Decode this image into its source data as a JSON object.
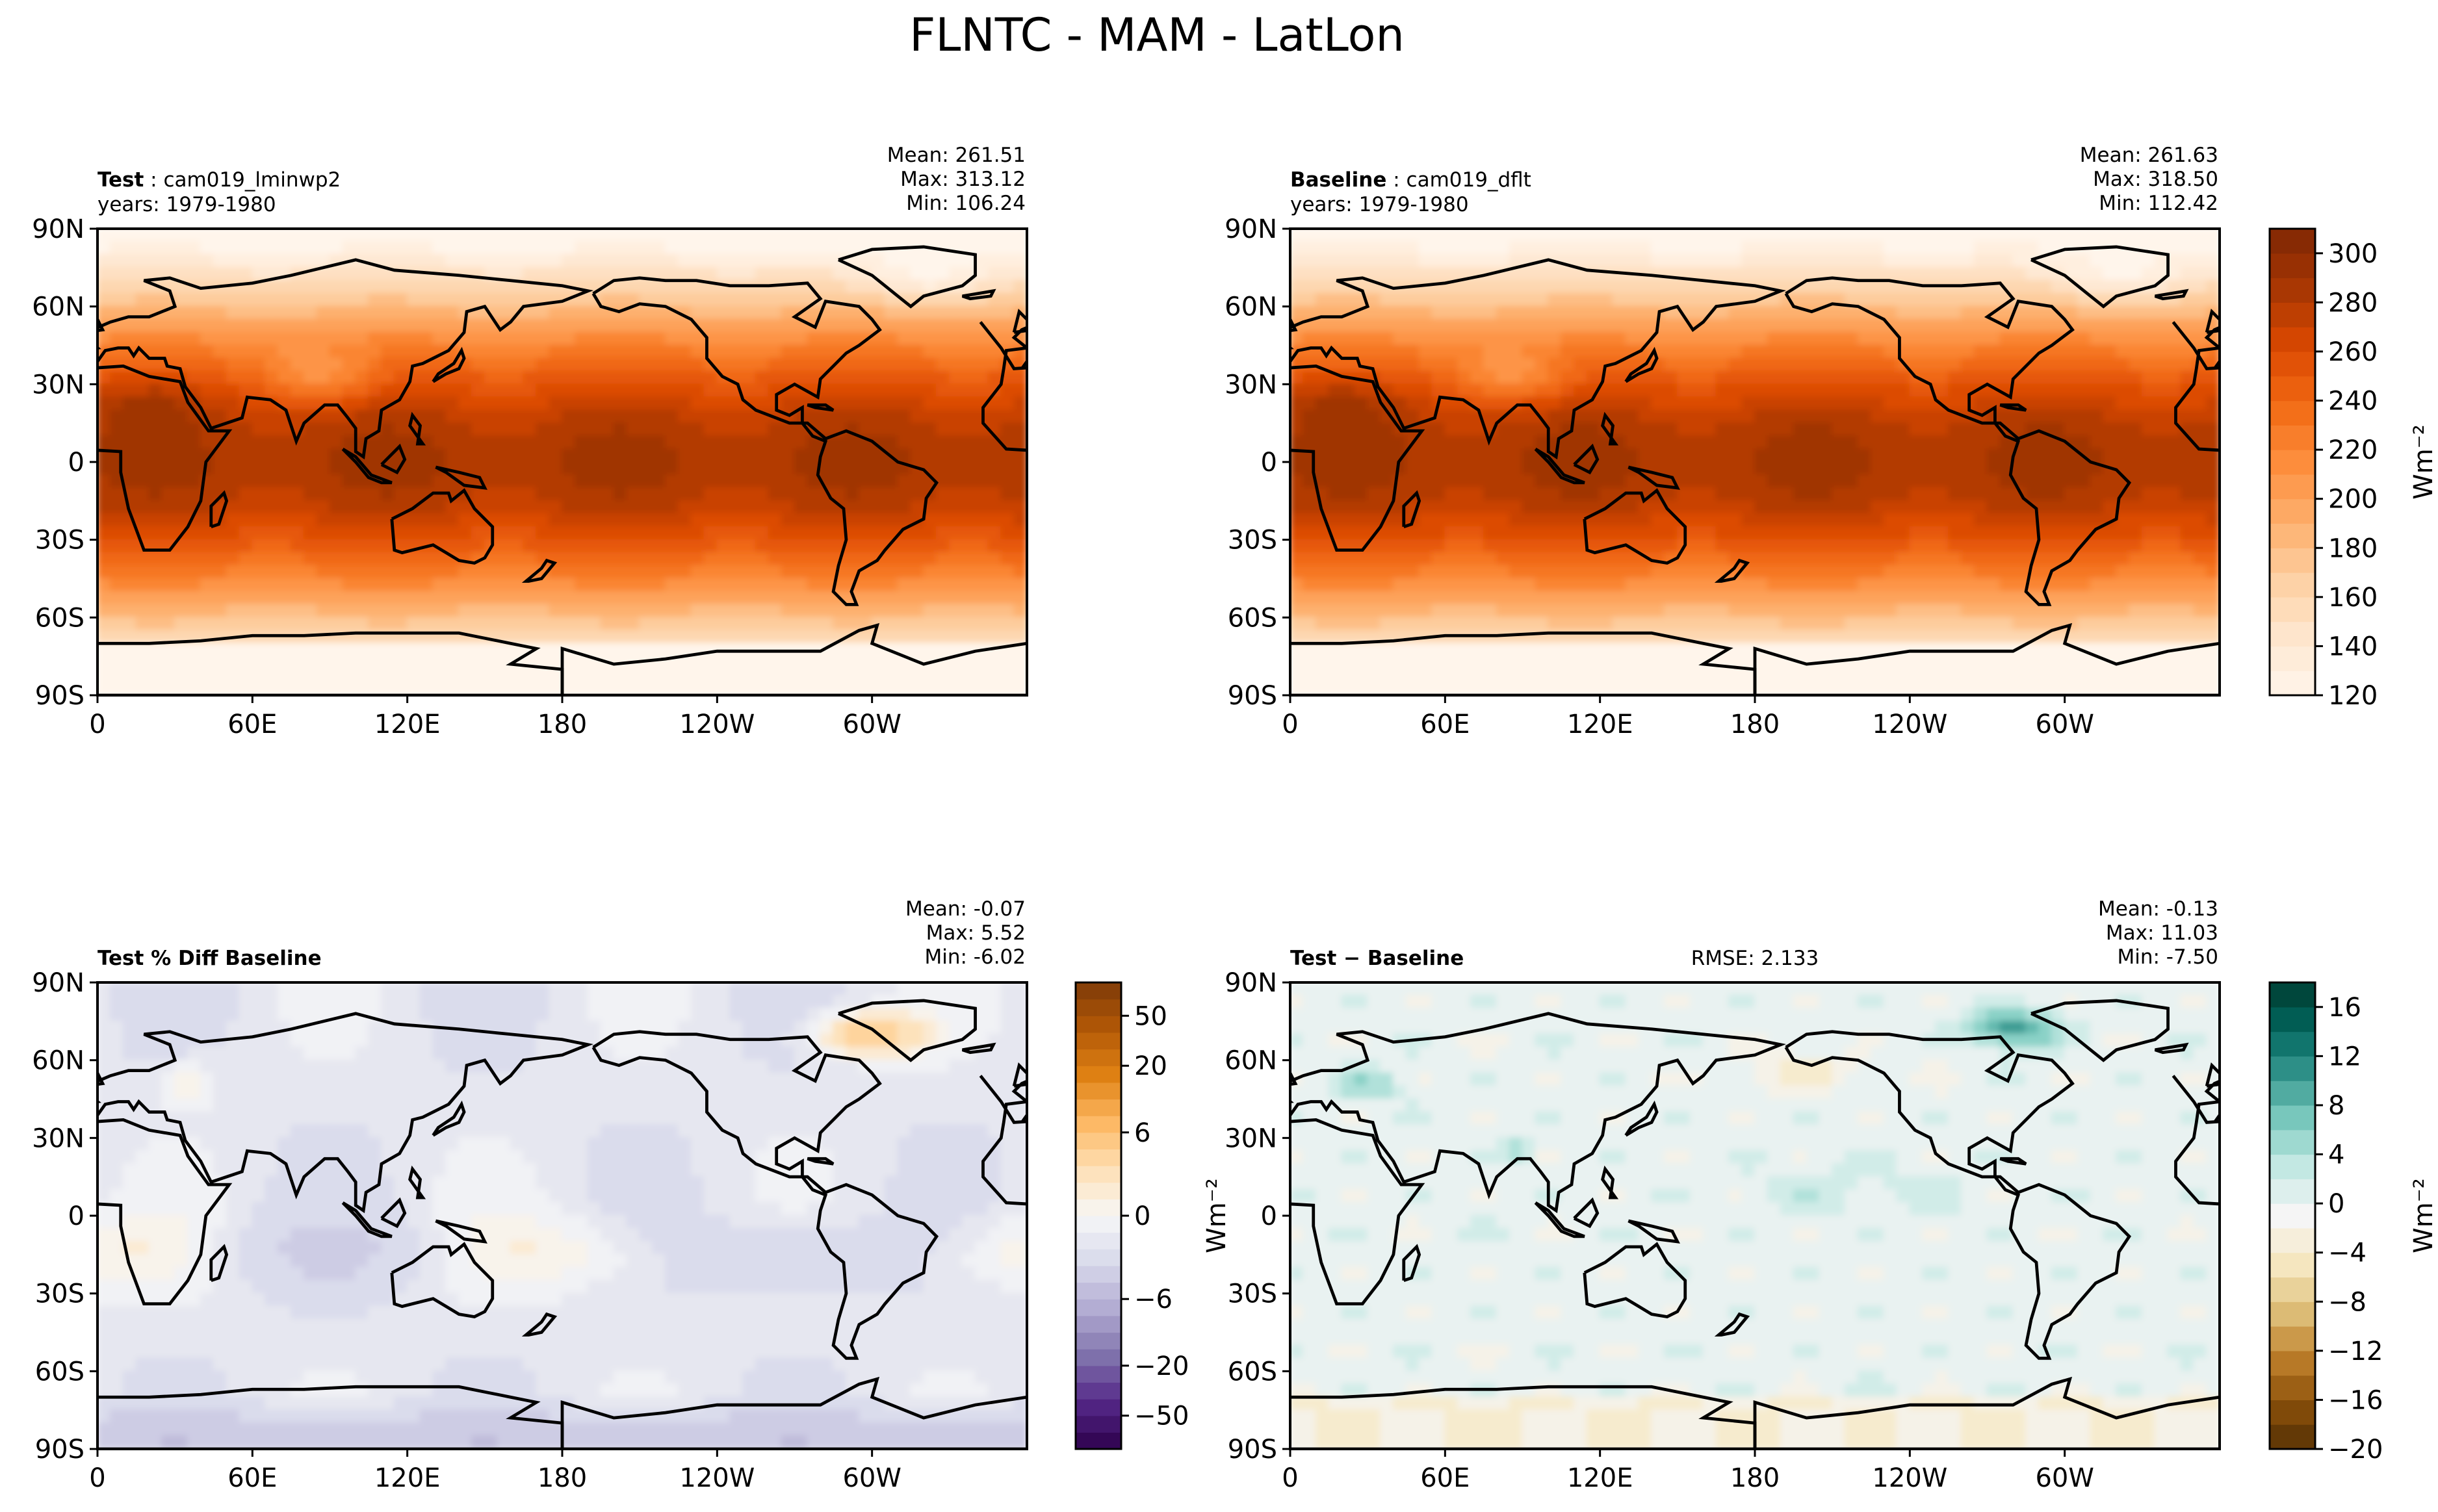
{
  "figure_title": "FLNTC - MAM - LatLon",
  "lat_ticks": [
    "90N",
    "60N",
    "30N",
    "0",
    "30S",
    "60S",
    "90S"
  ],
  "lon_ticks": [
    "0",
    "60E",
    "120E",
    "180",
    "120W",
    "60W"
  ],
  "palettes": {
    "oranges": [
      "#fff5eb",
      "#fee6ce",
      "#fdd0a2",
      "#fdae6b",
      "#fd8d3c",
      "#f16913",
      "#d94801",
      "#a63603",
      "#7f2704"
    ],
    "puor": [
      "#2d004b",
      "#542788",
      "#8073ac",
      "#b2abd2",
      "#d8daeb",
      "#f7f7f7",
      "#fee0b6",
      "#fdb863",
      "#e08214",
      "#b35806",
      "#7f3b08"
    ],
    "brbg": [
      "#543005",
      "#8c510a",
      "#bf812d",
      "#dfc27d",
      "#f6e8c3",
      "#f5f5f5",
      "#c7eae5",
      "#80cdc1",
      "#35978f",
      "#01665e",
      "#003c30"
    ]
  },
  "chart_data": [
    {
      "type": "heatmap",
      "id": "test",
      "title_bold": "Test",
      "title_rest": "cam019_lminwp2",
      "years": "years: 1979-1980",
      "stats": [
        "Mean: 261.51",
        "Max: 313.12",
        "Min: 106.24"
      ],
      "mean": 261.51,
      "max": 313.12,
      "min": 106.24,
      "field": "flntc"
    },
    {
      "type": "heatmap",
      "id": "baseline",
      "title_bold": "Baseline",
      "title_rest": "cam019_dflt",
      "years": "years: 1979-1980",
      "stats": [
        "Mean: 261.63",
        "Max: 318.50",
        "Min: 112.42"
      ],
      "mean": 261.63,
      "max": 318.5,
      "min": 112.42,
      "field": "flntc",
      "colorbar": {
        "label": "Wm⁻²",
        "ticks": [
          "120",
          "140",
          "160",
          "180",
          "200",
          "220",
          "240",
          "260",
          "280",
          "300"
        ],
        "tick_values": [
          120,
          140,
          160,
          180,
          200,
          220,
          240,
          260,
          280,
          300
        ],
        "range": [
          120,
          310
        ],
        "palette": "oranges"
      }
    },
    {
      "type": "heatmap",
      "id": "pctdiff",
      "title_bold": "Test % Diff Baseline",
      "stats": [
        "Mean: -0.07",
        "Max:  5.52",
        "Min: -6.02"
      ],
      "mean": -0.07,
      "max": 5.52,
      "min": -6.02,
      "field": "pctdiff",
      "colorbar": {
        "label": "",
        "ticks": [
          "50",
          "20",
          "6",
          "0",
          "−6",
          "−20",
          "−50"
        ],
        "tick_values": [
          50,
          20,
          6,
          0,
          -6,
          -20,
          -50
        ],
        "levels": [
          -100,
          -75,
          -50,
          -40,
          -30,
          -20,
          -15,
          -10,
          -8,
          -6,
          -4,
          -2,
          -1,
          -0.5,
          0,
          0.5,
          1,
          2,
          4,
          6,
          8,
          10,
          15,
          20,
          30,
          40,
          50,
          75,
          100
        ],
        "palette": "puor"
      }
    },
    {
      "type": "heatmap",
      "id": "diff",
      "title_bold": "Test − Baseline",
      "rmse": "RMSE: 2.133",
      "stats": [
        "Mean: -0.13",
        "Max: 11.03",
        "Min: -7.50"
      ],
      "mean": -0.13,
      "max": 11.03,
      "min": -7.5,
      "field": "diff",
      "ylabel_left": "Wm⁻²",
      "colorbar": {
        "label": "Wm⁻²",
        "ticks": [
          "16",
          "12",
          "8",
          "4",
          "0",
          "−4",
          "−8",
          "−12",
          "−16",
          "−20"
        ],
        "tick_values": [
          16,
          12,
          8,
          4,
          0,
          -4,
          -8,
          -12,
          -16,
          -20
        ],
        "range": [
          -20,
          18
        ],
        "palette": "brbg"
      }
    }
  ]
}
